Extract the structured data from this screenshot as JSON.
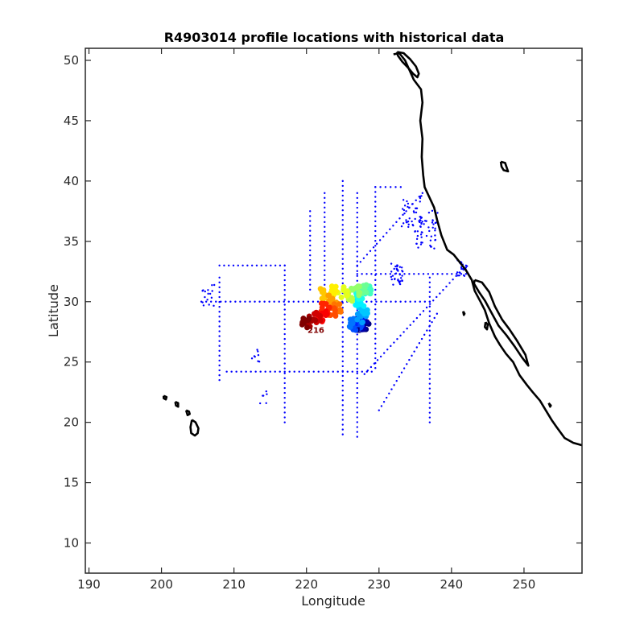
{
  "chart_data": {
    "type": "scatter",
    "title": "R4903014 profile locations with historical data",
    "xlabel": "Longitude",
    "ylabel": "Latitude",
    "xlim": [
      189.5,
      258
    ],
    "ylim": [
      7.5,
      51
    ],
    "xticks": [
      190,
      200,
      210,
      220,
      230,
      240,
      250
    ],
    "yticks": [
      10,
      15,
      20,
      25,
      30,
      35,
      40,
      45,
      50
    ],
    "grid": false,
    "legend": "none",
    "colors": {
      "historical": "#0000ff",
      "coastline": "#000000",
      "axis": "#262626",
      "float_colormap": "jet"
    },
    "historical_lines": [
      {
        "x": [
          208,
          217
        ],
        "y": [
          33,
          33
        ]
      },
      {
        "x": [
          208,
          208
        ],
        "y": [
          32,
          23.5
        ]
      },
      {
        "x": [
          217,
          217
        ],
        "y": [
          33,
          20
        ]
      },
      {
        "x": [
          205.5,
          237
        ],
        "y": [
          30,
          30
        ]
      },
      {
        "x": [
          209,
          229
        ],
        "y": [
          24.2,
          24.2
        ]
      },
      {
        "x": [
          222.5,
          222.5
        ],
        "y": [
          39,
          31
        ]
      },
      {
        "x": [
          225,
          225
        ],
        "y": [
          40,
          19
        ]
      },
      {
        "x": [
          227,
          227
        ],
        "y": [
          39,
          18.8
        ]
      },
      {
        "x": [
          229.5,
          229.5
        ],
        "y": [
          39.5,
          24.5
        ]
      },
      {
        "x": [
          237,
          237
        ],
        "y": [
          32,
          20
        ]
      },
      {
        "x": [
          227,
          242
        ],
        "y": [
          32.3,
          32.3
        ]
      },
      {
        "x": [
          227,
          236
        ],
        "y": [
          33,
          39
        ]
      },
      {
        "x": [
          228,
          242
        ],
        "y": [
          24,
          33
        ]
      },
      {
        "x": [
          220.5,
          220.5
        ],
        "y": [
          37.5,
          31
        ]
      },
      {
        "x": [
          229.5,
          233
        ],
        "y": [
          39.5,
          39.5
        ]
      },
      {
        "x": [
          230,
          238
        ],
        "y": [
          21,
          29
        ]
      }
    ],
    "historical_clusters": [
      {
        "x": 234.5,
        "y": 37.5,
        "spread": 1.4,
        "n": 40
      },
      {
        "x": 236.5,
        "y": 36.0,
        "spread": 1.6,
        "n": 50
      },
      {
        "x": 232.5,
        "y": 32.3,
        "spread": 0.9,
        "n": 35
      },
      {
        "x": 241.5,
        "y": 32.8,
        "spread": 0.7,
        "n": 18
      },
      {
        "x": 206.5,
        "y": 30.5,
        "spread": 0.9,
        "n": 16
      },
      {
        "x": 213.0,
        "y": 25.5,
        "spread": 0.6,
        "n": 8
      },
      {
        "x": 214.0,
        "y": 22.0,
        "spread": 0.6,
        "n": 6
      }
    ],
    "float_profiles": [
      {
        "x": 228.0,
        "y": 28.1,
        "c": 0.0
      },
      {
        "x": 227.7,
        "y": 28.0,
        "c": 0.04
      },
      {
        "x": 227.3,
        "y": 28.2,
        "c": 0.08
      },
      {
        "x": 227.1,
        "y": 28.4,
        "c": 0.12
      },
      {
        "x": 226.8,
        "y": 28.1,
        "c": 0.16
      },
      {
        "x": 227.0,
        "y": 27.9,
        "c": 0.2
      },
      {
        "x": 226.6,
        "y": 28.3,
        "c": 0.24
      },
      {
        "x": 227.6,
        "y": 28.6,
        "c": 0.28
      },
      {
        "x": 227.8,
        "y": 29.3,
        "c": 0.32
      },
      {
        "x": 227.3,
        "y": 29.9,
        "c": 0.36
      },
      {
        "x": 227.5,
        "y": 30.5,
        "c": 0.4
      },
      {
        "x": 228.3,
        "y": 30.9,
        "c": 0.44
      },
      {
        "x": 227.7,
        "y": 31.0,
        "c": 0.48
      },
      {
        "x": 226.7,
        "y": 30.9,
        "c": 0.52
      },
      {
        "x": 226.0,
        "y": 30.4,
        "c": 0.56
      },
      {
        "x": 225.0,
        "y": 30.8,
        "c": 0.6
      },
      {
        "x": 223.7,
        "y": 30.9,
        "c": 0.64
      },
      {
        "x": 222.5,
        "y": 30.7,
        "c": 0.68
      },
      {
        "x": 223.5,
        "y": 30.2,
        "c": 0.72
      },
      {
        "x": 224.3,
        "y": 29.6,
        "c": 0.76
      },
      {
        "x": 223.6,
        "y": 29.2,
        "c": 0.8
      },
      {
        "x": 222.6,
        "y": 29.5,
        "c": 0.84
      },
      {
        "x": 222.3,
        "y": 28.8,
        "c": 0.88
      },
      {
        "x": 221.4,
        "y": 28.7,
        "c": 0.92
      },
      {
        "x": 220.6,
        "y": 28.4,
        "c": 0.96
      },
      {
        "x": 219.8,
        "y": 28.3,
        "c": 1.0
      }
    ],
    "point_labels": [
      {
        "text": "1",
        "x": 227.2,
        "y": 27.4,
        "c": 0.0
      },
      {
        "text": "216",
        "x": 221.3,
        "y": 27.4,
        "c": 1.0
      }
    ],
    "coastline": [
      {
        "name": "north-america",
        "x": [
          232.0,
          232.8,
          233.6,
          234.2,
          234.8,
          235.3,
          235.8,
          236.0,
          235.7,
          236.0,
          235.9,
          236.1,
          236.3,
          237.0,
          237.6,
          238.0,
          238.6,
          239.4,
          240.3,
          241.1,
          242.0,
          242.8,
          243.2,
          244.0,
          244.6,
          245.2,
          246.0,
          246.7,
          247.5,
          248.5,
          249.4,
          250.4,
          251.2,
          252.2,
          253.0,
          253.8,
          254.5,
          255.6,
          256.8,
          258.0
        ],
        "y": [
          50.5,
          50.6,
          50.0,
          49.2,
          48.4,
          48.0,
          47.6,
          46.5,
          45.0,
          43.5,
          42.0,
          40.5,
          39.5,
          38.6,
          37.8,
          36.8,
          35.5,
          34.3,
          33.9,
          33.3,
          32.6,
          31.8,
          30.9,
          30.0,
          29.3,
          28.2,
          27.1,
          26.4,
          25.7,
          25.0,
          23.9,
          23.1,
          22.5,
          21.8,
          21.0,
          20.2,
          19.6,
          18.7,
          18.3,
          18.1
        ]
      },
      {
        "name": "baja-gulf-coast",
        "x": [
          243.2,
          244.2,
          245.2,
          246.0,
          247.0,
          248.0,
          249.0,
          250.2,
          250.6,
          249.7,
          248.7,
          247.6,
          246.5,
          245.5,
          244.6,
          243.8,
          243.1,
          243.2
        ],
        "y": [
          31.8,
          31.6,
          30.8,
          29.6,
          28.5,
          27.7,
          26.8,
          25.6,
          24.7,
          25.4,
          26.3,
          27.2,
          28.0,
          29.1,
          30.1,
          30.8,
          31.5,
          31.8
        ]
      },
      {
        "name": "vancouver-island",
        "x": [
          232.5,
          233.4,
          234.3,
          235.1,
          235.5,
          235.3,
          234.7,
          234.0,
          233.2,
          232.6,
          232.5
        ],
        "y": [
          50.7,
          50.6,
          50.1,
          49.5,
          48.9,
          48.6,
          48.9,
          49.4,
          49.9,
          50.4,
          50.7
        ]
      },
      {
        "name": "cedros-island",
        "x": [
          244.7,
          245.0,
          244.9,
          244.6,
          244.7
        ],
        "y": [
          28.3,
          28.1,
          27.7,
          27.9,
          28.3
        ]
      },
      {
        "name": "lake-tahoe",
        "x": [
          246.8,
          247.4,
          247.8,
          247.2,
          246.9,
          246.8
        ],
        "y": [
          41.6,
          41.5,
          40.8,
          40.9,
          41.2,
          41.6
        ]
      },
      {
        "name": "hawaii-big-island",
        "x": [
          204.2,
          204.7,
          205.1,
          205.0,
          204.6,
          204.1,
          204.0,
          204.2
        ],
        "y": [
          20.2,
          20.0,
          19.5,
          19.1,
          18.9,
          19.1,
          19.6,
          20.2
        ]
      },
      {
        "name": "maui",
        "x": [
          203.4,
          203.8,
          203.9,
          203.6,
          203.4
        ],
        "y": [
          21.0,
          20.9,
          20.7,
          20.6,
          21.0
        ]
      },
      {
        "name": "oahu",
        "x": [
          201.9,
          202.3,
          202.3,
          202.0,
          201.9
        ],
        "y": [
          21.7,
          21.6,
          21.3,
          21.4,
          21.7
        ]
      },
      {
        "name": "kauai",
        "x": [
          200.3,
          200.7,
          200.6,
          200.3,
          200.3
        ],
        "y": [
          22.2,
          22.1,
          21.9,
          22.0,
          22.2
        ]
      },
      {
        "name": "guadalupe-island",
        "x": [
          241.6,
          241.8,
          241.7,
          241.6
        ],
        "y": [
          29.2,
          29.0,
          28.9,
          29.2
        ]
      },
      {
        "name": "islas-marias",
        "x": [
          253.4,
          253.7,
          253.6,
          253.4
        ],
        "y": [
          21.6,
          21.4,
          21.3,
          21.6
        ]
      }
    ]
  }
}
